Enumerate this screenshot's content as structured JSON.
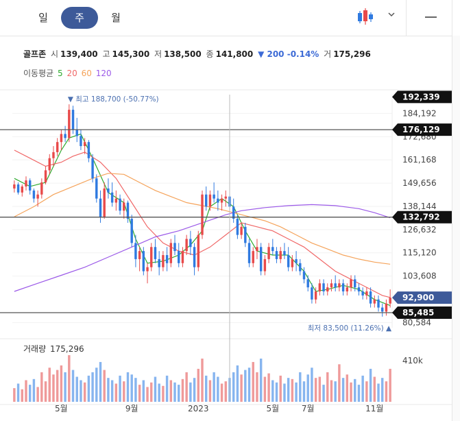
{
  "tabs": [
    {
      "label": "일"
    },
    {
      "label": "주"
    },
    {
      "label": "월"
    }
  ],
  "toolbar": {
    "chart_type_icon": "candlestick-icon",
    "dropdown_icon": "chevron-down-icon",
    "minimize_icon": "minus-icon"
  },
  "quote": {
    "name": "골프존",
    "open_label": "시",
    "open": "139,400",
    "high_label": "고",
    "high": "145,300",
    "low_label": "저",
    "low": "138,500",
    "close_label": "종",
    "close": "141,800",
    "change": "▼ 200 -0.14%",
    "volume_label": "거",
    "volume": "175,296"
  },
  "moving_average": {
    "label": "이동평균",
    "items": [
      {
        "label": "5",
        "color": "#2eaa2e"
      },
      {
        "label": "20",
        "color": "#f06767"
      },
      {
        "label": "60",
        "color": "#f5a35a"
      },
      {
        "label": "120",
        "color": "#9b59e8"
      }
    ]
  },
  "colors": {
    "up": "#e84a4a",
    "down": "#2f7ae0",
    "vol_up": "#ef9a9a",
    "vol_down": "#87b5ef",
    "accent": "#3d5a99",
    "current_price_tag": "#3d5a99",
    "level_tag": "#111111"
  },
  "chart_data": {
    "type": "candlestick",
    "interval": "weekly",
    "y_ticks": [
      "184,192",
      "172,680",
      "161,168",
      "149,656",
      "138,144",
      "126,632",
      "115,120",
      "103,608",
      "80,584"
    ],
    "y_tick_values": [
      184192,
      172680,
      161168,
      149656,
      138144,
      126632,
      115120,
      103608,
      80584
    ],
    "ylim": [
      78000,
      193500
    ],
    "x_ticks": [
      {
        "label": "5월",
        "index": 12
      },
      {
        "label": "9월",
        "index": 30
      },
      {
        "label": "2023",
        "index": 47
      },
      {
        "label": "5월",
        "index": 66
      },
      {
        "label": "7월",
        "index": 75
      },
      {
        "label": "11월",
        "index": 92
      }
    ],
    "price_tags": [
      {
        "label": "192,339",
        "value": 192339,
        "kind": "level"
      },
      {
        "label": "176,129",
        "value": 176129,
        "kind": "level"
      },
      {
        "label": "132,792",
        "value": 132792,
        "kind": "level"
      },
      {
        "label": "92,900",
        "value": 92900,
        "kind": "current"
      },
      {
        "label": "85,485",
        "value": 85485,
        "kind": "level"
      }
    ],
    "horizontal_lines": [
      176129,
      132792,
      85485
    ],
    "crosshair_index": 55,
    "annotations": {
      "high": {
        "text": "▼ 최고 188,700 (-50.77%)",
        "value": 188700,
        "index": 14
      },
      "low": {
        "text": "최저 83,500 (11.26%) ▲",
        "value": 83500,
        "index": 96
      }
    },
    "volume_label": "거래량",
    "volume_value": "175,296",
    "volume_axis_label": "410k",
    "volume_max": 410000,
    "candles": [
      [
        147000,
        151000,
        145000,
        149000
      ],
      [
        149000,
        150000,
        144000,
        145000
      ],
      [
        145000,
        149000,
        143000,
        148000
      ],
      [
        148000,
        153000,
        146000,
        151000
      ],
      [
        151000,
        152000,
        144000,
        146000
      ],
      [
        146000,
        147000,
        140000,
        142000
      ],
      [
        142000,
        146000,
        138000,
        144000
      ],
      [
        144000,
        152000,
        142000,
        150000
      ],
      [
        150000,
        158000,
        149000,
        156000
      ],
      [
        156000,
        164000,
        154000,
        162000
      ],
      [
        162000,
        168000,
        158000,
        165000
      ],
      [
        165000,
        172000,
        163000,
        170000
      ],
      [
        170000,
        176000,
        166000,
        174000
      ],
      [
        174000,
        178000,
        170000,
        172000
      ],
      [
        172000,
        188700,
        170000,
        186000
      ],
      [
        186000,
        188000,
        174000,
        176000
      ],
      [
        176000,
        182000,
        170000,
        173000
      ],
      [
        173000,
        176000,
        166000,
        168000
      ],
      [
        168000,
        172000,
        164000,
        170000
      ],
      [
        170000,
        171000,
        160000,
        162000
      ],
      [
        162000,
        164000,
        150000,
        152000
      ],
      [
        152000,
        154000,
        140000,
        142000
      ],
      [
        142000,
        146000,
        130000,
        133000
      ],
      [
        133000,
        150000,
        132000,
        147000
      ],
      [
        147000,
        152000,
        142000,
        145000
      ],
      [
        145000,
        150000,
        138000,
        140000
      ],
      [
        140000,
        146000,
        136000,
        142000
      ],
      [
        142000,
        144000,
        134000,
        136000
      ],
      [
        136000,
        142000,
        132000,
        140000
      ],
      [
        140000,
        141000,
        130000,
        132000
      ],
      [
        132000,
        134000,
        118000,
        120000
      ],
      [
        120000,
        124000,
        108000,
        112000
      ],
      [
        112000,
        118000,
        106000,
        116000
      ],
      [
        116000,
        118000,
        104000,
        106000
      ],
      [
        106000,
        110000,
        100000,
        108000
      ],
      [
        108000,
        120000,
        106000,
        118000
      ],
      [
        118000,
        122000,
        110000,
        112000
      ],
      [
        112000,
        116000,
        104000,
        108000
      ],
      [
        108000,
        116000,
        106000,
        114000
      ],
      [
        114000,
        118000,
        106000,
        110000
      ],
      [
        110000,
        122000,
        108000,
        120000
      ],
      [
        120000,
        124000,
        114000,
        116000
      ],
      [
        116000,
        120000,
        108000,
        110000
      ],
      [
        110000,
        118000,
        108000,
        116000
      ],
      [
        116000,
        124000,
        114000,
        122000
      ],
      [
        122000,
        126000,
        114000,
        118000
      ],
      [
        118000,
        120000,
        104000,
        108000
      ],
      [
        108000,
        126000,
        106000,
        124000
      ],
      [
        124000,
        146000,
        122000,
        144000
      ],
      [
        144000,
        148000,
        136000,
        138000
      ],
      [
        138000,
        146000,
        136000,
        144000
      ],
      [
        144000,
        150000,
        140000,
        142000
      ],
      [
        142000,
        146000,
        136000,
        140000
      ],
      [
        140000,
        144000,
        136000,
        142000
      ],
      [
        142000,
        146000,
        138000,
        143000
      ],
      [
        143000,
        144000,
        136000,
        138000
      ],
      [
        138000,
        142000,
        130000,
        132000
      ],
      [
        132000,
        134000,
        122000,
        124000
      ],
      [
        124000,
        130000,
        122000,
        128000
      ],
      [
        128000,
        130000,
        118000,
        120000
      ],
      [
        120000,
        122000,
        108000,
        110000
      ],
      [
        110000,
        118000,
        108000,
        116000
      ],
      [
        116000,
        122000,
        112000,
        118000
      ],
      [
        118000,
        120000,
        104000,
        106000
      ],
      [
        106000,
        114000,
        104000,
        112000
      ],
      [
        112000,
        120000,
        110000,
        118000
      ],
      [
        118000,
        122000,
        114000,
        116000
      ],
      [
        116000,
        118000,
        110000,
        112000
      ],
      [
        112000,
        118000,
        110000,
        116000
      ],
      [
        116000,
        120000,
        112000,
        114000
      ],
      [
        114000,
        118000,
        106000,
        108000
      ],
      [
        108000,
        114000,
        106000,
        112000
      ],
      [
        112000,
        116000,
        106000,
        110000
      ],
      [
        110000,
        112000,
        104000,
        106000
      ],
      [
        106000,
        108000,
        100000,
        102000
      ],
      [
        102000,
        104000,
        96000,
        98000
      ],
      [
        98000,
        100000,
        90000,
        92000
      ],
      [
        92000,
        98000,
        90000,
        96000
      ],
      [
        96000,
        102000,
        94000,
        100000
      ],
      [
        100000,
        102000,
        94000,
        96000
      ],
      [
        96000,
        100000,
        94000,
        98000
      ],
      [
        98000,
        102000,
        96000,
        100000
      ],
      [
        100000,
        104000,
        96000,
        98000
      ],
      [
        98000,
        102000,
        96000,
        100000
      ],
      [
        100000,
        102000,
        94000,
        96000
      ],
      [
        96000,
        100000,
        94000,
        98000
      ],
      [
        98000,
        104000,
        96000,
        102000
      ],
      [
        102000,
        104000,
        96000,
        98000
      ],
      [
        98000,
        100000,
        94000,
        96000
      ],
      [
        96000,
        98000,
        92000,
        94000
      ],
      [
        94000,
        98000,
        92000,
        96000
      ],
      [
        96000,
        98000,
        88000,
        90000
      ],
      [
        90000,
        94000,
        88000,
        92000
      ],
      [
        92000,
        94000,
        86000,
        88000
      ],
      [
        88000,
        90000,
        83500,
        86000
      ],
      [
        86000,
        92000,
        84000,
        90000
      ],
      [
        90000,
        97000,
        88000,
        92900
      ]
    ],
    "volumes": [
      120000,
      160000,
      110000,
      190000,
      150000,
      200000,
      130000,
      260000,
      180000,
      300000,
      240000,
      280000,
      320000,
      260000,
      410000,
      280000,
      220000,
      190000,
      170000,
      230000,
      260000,
      300000,
      350000,
      280000,
      210000,
      190000,
      160000,
      230000,
      180000,
      260000,
      240000,
      210000,
      150000,
      190000,
      130000,
      170000,
      220000,
      160000,
      140000,
      230000,
      190000,
      170000,
      150000,
      200000,
      260000,
      170000,
      210000,
      290000,
      380000,
      230000,
      190000,
      260000,
      220000,
      160000,
      180000,
      210000,
      260000,
      320000,
      240000,
      280000,
      300000,
      350000,
      260000,
      380000,
      220000,
      250000,
      190000,
      170000,
      230000,
      160000,
      210000,
      200000,
      170000,
      260000,
      180000,
      240000,
      300000,
      210000,
      220000,
      150000,
      260000,
      190000,
      180000,
      330000,
      210000,
      240000,
      170000,
      200000,
      150000,
      230000,
      180000,
      290000,
      220000,
      160000,
      210000,
      180000,
      290000
    ],
    "ma": {
      "ma5": [
        [
          0,
          152000
        ],
        [
          4,
          148000
        ],
        [
          8,
          150000
        ],
        [
          12,
          166000
        ],
        [
          14,
          172000
        ],
        [
          17,
          174000
        ],
        [
          20,
          162000
        ],
        [
          24,
          145000
        ],
        [
          28,
          140000
        ],
        [
          31,
          122000
        ],
        [
          34,
          110000
        ],
        [
          38,
          111000
        ],
        [
          42,
          114000
        ],
        [
          45,
          119000
        ],
        [
          48,
          126000
        ],
        [
          50,
          138000
        ],
        [
          53,
          142000
        ],
        [
          56,
          138000
        ],
        [
          59,
          126000
        ],
        [
          62,
          116000
        ],
        [
          66,
          114000
        ],
        [
          70,
          114000
        ],
        [
          74,
          106000
        ],
        [
          77,
          96000
        ],
        [
          80,
          97000
        ],
        [
          84,
          99000
        ],
        [
          88,
          97000
        ],
        [
          92,
          92000
        ],
        [
          96,
          89000
        ]
      ],
      "ma20": [
        [
          0,
          166000
        ],
        [
          4,
          162000
        ],
        [
          8,
          158000
        ],
        [
          12,
          160000
        ],
        [
          15,
          163000
        ],
        [
          18,
          165000
        ],
        [
          22,
          160000
        ],
        [
          26,
          152000
        ],
        [
          30,
          140000
        ],
        [
          34,
          128000
        ],
        [
          38,
          120000
        ],
        [
          42,
          116000
        ],
        [
          46,
          114000
        ],
        [
          50,
          118000
        ],
        [
          54,
          124000
        ],
        [
          58,
          130000
        ],
        [
          62,
          128000
        ],
        [
          66,
          126000
        ],
        [
          70,
          122000
        ],
        [
          74,
          118000
        ],
        [
          78,
          112000
        ],
        [
          82,
          106000
        ],
        [
          86,
          102000
        ],
        [
          90,
          98000
        ],
        [
          94,
          94000
        ],
        [
          96,
          93000
        ]
      ],
      "ma60": [
        [
          0,
          133000
        ],
        [
          5,
          138000
        ],
        [
          10,
          144000
        ],
        [
          15,
          148000
        ],
        [
          20,
          152000
        ],
        [
          24,
          154500
        ],
        [
          28,
          154000
        ],
        [
          32,
          150000
        ],
        [
          36,
          146000
        ],
        [
          40,
          143000
        ],
        [
          44,
          140000
        ],
        [
          48,
          138500
        ],
        [
          52,
          137000
        ],
        [
          56,
          135000
        ],
        [
          60,
          133000
        ],
        [
          64,
          131000
        ],
        [
          68,
          128000
        ],
        [
          72,
          124000
        ],
        [
          76,
          120000
        ],
        [
          80,
          117000
        ],
        [
          84,
          114000
        ],
        [
          88,
          112000
        ],
        [
          92,
          110500
        ],
        [
          96,
          109500
        ]
      ],
      "ma120": [
        [
          0,
          96000
        ],
        [
          6,
          100000
        ],
        [
          12,
          104000
        ],
        [
          18,
          108000
        ],
        [
          24,
          113000
        ],
        [
          30,
          118000
        ],
        [
          36,
          123000
        ],
        [
          42,
          126000
        ],
        [
          48,
          130000
        ],
        [
          54,
          134000
        ],
        [
          58,
          136000
        ],
        [
          64,
          137500
        ],
        [
          70,
          138500
        ],
        [
          76,
          139000
        ],
        [
          82,
          138500
        ],
        [
          88,
          137000
        ],
        [
          92,
          135000
        ],
        [
          96,
          132500
        ]
      ]
    }
  }
}
